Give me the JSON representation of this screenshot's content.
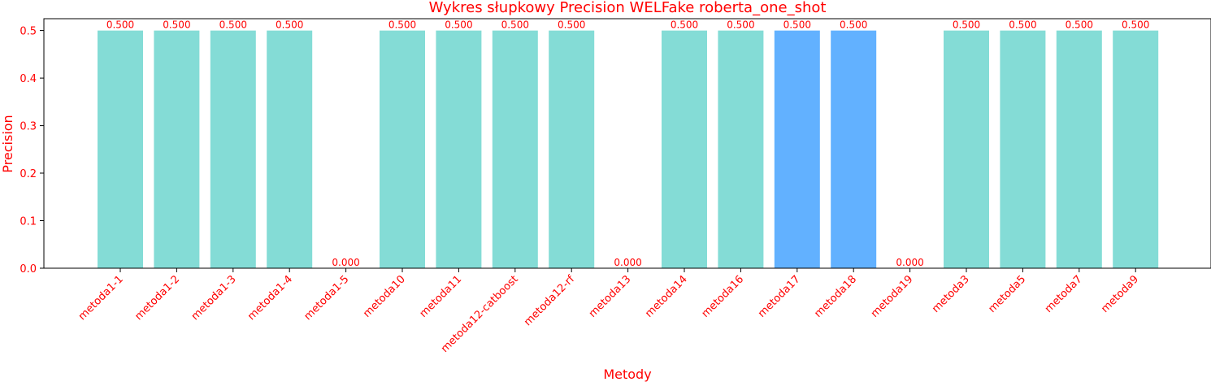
{
  "chart_data": {
    "type": "bar",
    "title": "Wykres słupkowy Precision WELFake roberta_one_shot",
    "xlabel": "Metody",
    "ylabel": "Precision",
    "ylim": [
      0,
      0.525
    ],
    "yticks": [
      "0.0",
      "0.1",
      "0.2",
      "0.3",
      "0.4",
      "0.5"
    ],
    "grid": false,
    "categories": [
      "metoda1-1",
      "metoda1-2",
      "metoda1-3",
      "metoda1-4",
      "metoda1-5",
      "metoda10",
      "metoda11",
      "metoda12-catboost",
      "metoda12-rf",
      "metoda13",
      "metoda14",
      "metoda16",
      "metoda17",
      "metoda18",
      "metoda19",
      "metoda3",
      "metoda5",
      "metoda7",
      "metoda9"
    ],
    "values": [
      0.5,
      0.5,
      0.5,
      0.5,
      0.0,
      0.5,
      0.5,
      0.5,
      0.5,
      0.0,
      0.5,
      0.5,
      0.5,
      0.5,
      0.0,
      0.5,
      0.5,
      0.5,
      0.5
    ],
    "value_labels": [
      "0.500",
      "0.500",
      "0.500",
      "0.500",
      "0.000",
      "0.500",
      "0.500",
      "0.500",
      "0.500",
      "0.000",
      "0.500",
      "0.500",
      "0.500",
      "0.500",
      "0.000",
      "0.500",
      "0.500",
      "0.500",
      "0.500"
    ],
    "highlighted": [
      "metoda17",
      "metoda18"
    ],
    "colors": {
      "bar": "#84dcd6",
      "bar_highlight": "#62b1ff",
      "text": "#ff0000",
      "axis": "#000000"
    }
  }
}
